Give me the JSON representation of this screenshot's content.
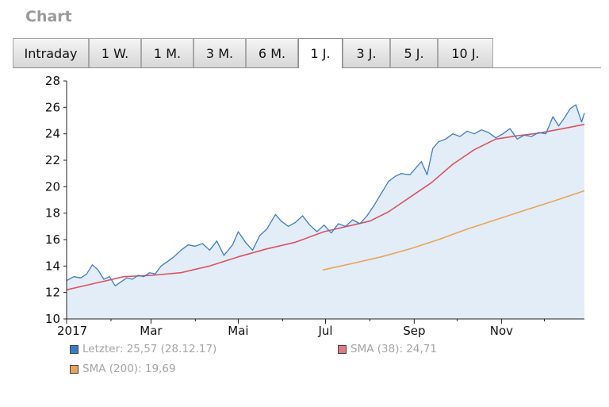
{
  "header": {
    "title": "Chart"
  },
  "tabs": [
    {
      "label": "Intraday",
      "active": false
    },
    {
      "label": "1 W.",
      "active": false
    },
    {
      "label": "1 M.",
      "active": false
    },
    {
      "label": "3 M.",
      "active": false
    },
    {
      "label": "6 M.",
      "active": false
    },
    {
      "label": "1 J.",
      "active": true
    },
    {
      "label": "3 J.",
      "active": false
    },
    {
      "label": "5 J.",
      "active": false
    },
    {
      "label": "10 J.",
      "active": false
    }
  ],
  "legend": [
    {
      "label": "Letzter: 25,57 (28.12.17)",
      "color": "#3b7dc4"
    },
    {
      "label": "SMA (38): 24,71",
      "color": "#e07a84"
    },
    {
      "label": "SMA (200): 19,69",
      "color": "#e8a458"
    }
  ],
  "chart_data": {
    "type": "area",
    "ylim": [
      10,
      28
    ],
    "yticks": [
      10,
      12,
      14,
      16,
      18,
      20,
      22,
      24,
      26,
      28
    ],
    "xlim": [
      0,
      362
    ],
    "xticks": [
      {
        "label": "2017",
        "day": 0
      },
      {
        "label": "Mar",
        "day": 59
      },
      {
        "label": "Mai",
        "day": 120
      },
      {
        "label": "Jul",
        "day": 181
      },
      {
        "label": "Sep",
        "day": 243
      },
      {
        "label": "Nov",
        "day": 304
      }
    ],
    "minor_xticks": [
      31,
      90,
      151,
      212,
      273,
      334
    ],
    "series": [
      {
        "name": "Letzter",
        "color": "#3b7dc4",
        "fill": "#e3edf8",
        "x": [
          0,
          5,
          10,
          14,
          18,
          22,
          26,
          30,
          34,
          38,
          42,
          46,
          50,
          54,
          58,
          62,
          66,
          70,
          75,
          80,
          85,
          90,
          95,
          100,
          105,
          110,
          116,
          120,
          125,
          130,
          135,
          140,
          146,
          150,
          155,
          160,
          165,
          170,
          175,
          180,
          185,
          190,
          195,
          200,
          205,
          210,
          215,
          220,
          225,
          230,
          234,
          240,
          244,
          248,
          252,
          256,
          260,
          265,
          270,
          275,
          280,
          285,
          290,
          295,
          300,
          305,
          310,
          315,
          320,
          325,
          330,
          335,
          340,
          344,
          348,
          352,
          356,
          360,
          362
        ],
        "values": [
          12.9,
          13.2,
          13.1,
          13.4,
          14.1,
          13.7,
          13.0,
          13.2,
          12.5,
          12.8,
          13.1,
          13.0,
          13.3,
          13.2,
          13.5,
          13.4,
          14.0,
          14.3,
          14.7,
          15.2,
          15.6,
          15.5,
          15.7,
          15.2,
          15.9,
          14.8,
          15.6,
          16.6,
          15.8,
          15.2,
          16.3,
          16.8,
          17.9,
          17.4,
          17.0,
          17.3,
          17.8,
          17.1,
          16.6,
          17.1,
          16.5,
          17.2,
          17.0,
          17.5,
          17.2,
          17.8,
          18.6,
          19.5,
          20.4,
          20.8,
          21.0,
          20.9,
          21.4,
          21.9,
          20.9,
          22.9,
          23.4,
          23.6,
          24.0,
          23.8,
          24.2,
          24.0,
          24.3,
          24.1,
          23.7,
          24.0,
          24.4,
          23.6,
          23.9,
          23.8,
          24.1,
          24.0,
          25.3,
          24.6,
          25.2,
          25.9,
          26.2,
          24.9,
          25.57
        ]
      },
      {
        "name": "SMA (38)",
        "color": "#d9535f",
        "x": [
          0,
          20,
          40,
          60,
          80,
          100,
          120,
          140,
          160,
          180,
          200,
          212,
          225,
          240,
          255,
          270,
          285,
          300,
          315,
          330,
          345,
          362
        ],
        "values": [
          12.2,
          12.7,
          13.2,
          13.3,
          13.5,
          14.0,
          14.7,
          15.3,
          15.8,
          16.6,
          17.1,
          17.4,
          18.1,
          19.2,
          20.3,
          21.7,
          22.8,
          23.6,
          23.85,
          24.05,
          24.35,
          24.71
        ]
      },
      {
        "name": "SMA (200)",
        "color": "#e8a458",
        "x": [
          179,
          200,
          220,
          240,
          260,
          280,
          300,
          320,
          340,
          362
        ],
        "values": [
          13.7,
          14.2,
          14.7,
          15.3,
          16.0,
          16.8,
          17.5,
          18.2,
          18.9,
          19.69
        ]
      }
    ]
  }
}
